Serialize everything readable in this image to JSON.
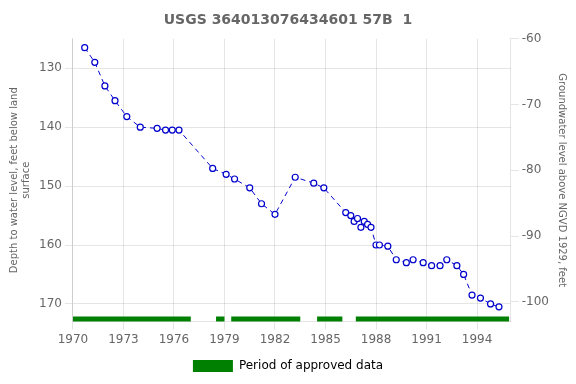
{
  "chart_data": {
    "type": "line",
    "title": "USGS 364013076434601 57B  1",
    "y_label": "Depth to water level, feet below land\nsurface",
    "y2_label": "Groundwater level above NGVD 1929, feet",
    "x": [
      1970.7,
      1971.3,
      1971.9,
      1972.5,
      1973.2,
      1974.0,
      1975.0,
      1975.5,
      1975.9,
      1976.3,
      1978.3,
      1979.1,
      1979.6,
      1980.5,
      1981.2,
      1982.0,
      1983.2,
      1984.3,
      1984.9,
      1986.2,
      1986.5,
      1986.7,
      1986.9,
      1987.1,
      1987.3,
      1987.5,
      1987.7,
      1988.0,
      1988.2,
      1988.7,
      1989.2,
      1989.8,
      1990.2,
      1990.8,
      1991.3,
      1991.8,
      1992.2,
      1992.8,
      1993.2,
      1993.7,
      1994.2,
      1994.8,
      1995.3
    ],
    "series": [
      {
        "color": "#0000CC",
        "marker": "circle",
        "line_style": "dashed",
        "values": [
          126.5,
          129.0,
          133.0,
          135.5,
          138.2,
          140.0,
          140.2,
          140.5,
          140.5,
          140.5,
          147.0,
          148.0,
          148.8,
          150.3,
          153.0,
          154.8,
          148.5,
          149.5,
          150.3,
          154.5,
          155.0,
          156.0,
          155.5,
          157.0,
          156.0,
          156.5,
          157.0,
          160.0,
          160.0,
          160.2,
          162.5,
          163.0,
          162.5,
          163.0,
          163.5,
          163.5,
          162.5,
          163.5,
          165.0,
          168.5,
          169.0,
          170.0,
          170.5
        ]
      }
    ],
    "approved_segments": {
      "name": "Period of approved data",
      "color": "#008000",
      "segments": [
        [
          1970.0,
          1977.0
        ],
        [
          1978.5,
          1979.0
        ],
        [
          1979.4,
          1983.5
        ],
        [
          1984.5,
          1986.0
        ],
        [
          1986.8,
          1995.9
        ]
      ]
    },
    "xlim": [
      1970,
      1996
    ],
    "xticks": [
      1970,
      1973,
      1976,
      1979,
      1982,
      1985,
      1988,
      1991,
      1994
    ],
    "ylim": [
      173,
      125
    ],
    "yticks": [
      130,
      140,
      150,
      160,
      170
    ],
    "y2lim": [
      -103,
      -60
    ],
    "y2ticks": [
      -60,
      -70,
      -80,
      -90,
      -100
    ],
    "grid": true,
    "legend": "bottom"
  }
}
